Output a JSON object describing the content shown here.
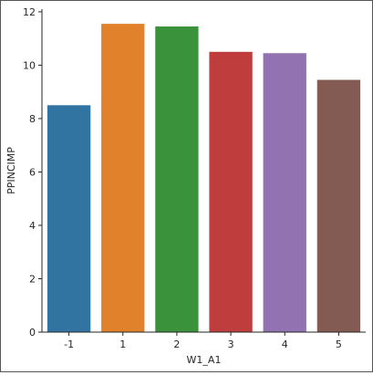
{
  "chart_data": {
    "type": "bar",
    "categories": [
      "-1",
      "1",
      "2",
      "3",
      "4",
      "5"
    ],
    "values": [
      8.5,
      11.55,
      11.45,
      10.5,
      10.45,
      9.45
    ],
    "colors": [
      "#3274a1",
      "#e1812c",
      "#3a923a",
      "#c03d3e",
      "#9372b2",
      "#845b53"
    ],
    "xlabel": "W1_A1",
    "ylabel": "PPINCIMP",
    "ylim": [
      0,
      12.1
    ],
    "yticks": [
      0,
      2,
      4,
      6,
      8,
      10,
      12
    ],
    "grid": false,
    "legend": "none"
  }
}
